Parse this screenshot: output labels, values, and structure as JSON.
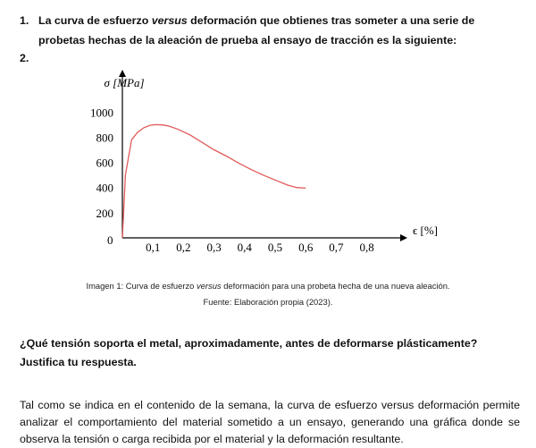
{
  "question1": {
    "number": "1.",
    "text_before": "La curva de esfuerzo ",
    "text_italic": "versus",
    "text_after": " deformación que obtienes tras someter a una serie de probetas hechas de la aleación de prueba al ensayo de tracción es la siguiente:"
  },
  "question2_number": "2.",
  "chart_data": {
    "type": "line",
    "ylabel": "σ [MPa]",
    "xlabel": "ϵ [%]",
    "xlim": [
      0,
      0.9
    ],
    "ylim": [
      0,
      1000
    ],
    "origin_label": "0",
    "x_ticks": [
      "0,1",
      "0,2",
      "0,3",
      "0,4",
      "0,5",
      "0,6",
      "0,7",
      "0,8"
    ],
    "y_ticks": [
      "200",
      "400",
      "600",
      "800",
      "1000"
    ],
    "line_color": "#e05a5a",
    "series": [
      {
        "x": [
          0.0,
          0.01,
          0.03,
          0.05,
          0.07,
          0.09,
          0.11,
          0.13,
          0.15,
          0.18,
          0.22,
          0.26,
          0.3,
          0.34,
          0.38,
          0.42,
          0.46,
          0.5,
          0.54,
          0.57,
          0.6
        ],
        "y": [
          0,
          500,
          780,
          840,
          875,
          895,
          900,
          898,
          890,
          865,
          820,
          760,
          700,
          650,
          595,
          545,
          500,
          460,
          420,
          400,
          395
        ]
      }
    ]
  },
  "caption": {
    "prefix": "Imagen 1:  Curva de esfuerzo ",
    "italic": "versus",
    "suffix": " deformación para una probeta hecha de una nueva aleación.",
    "source": "Fuente: Elaboración propia (2023)."
  },
  "question_text": "¿Qué tensión soporta el metal, aproximadamente, antes de deformarse plásticamente? Justifica tu respuesta.",
  "answer_text": "Tal como se indica en el contenido de la semana, la curva de esfuerzo versus deformación permite analizar el comportamiento del material sometido a un ensayo, generando una gráfica donde se observa la tensión o carga recibida por el material y la deformación resultante."
}
